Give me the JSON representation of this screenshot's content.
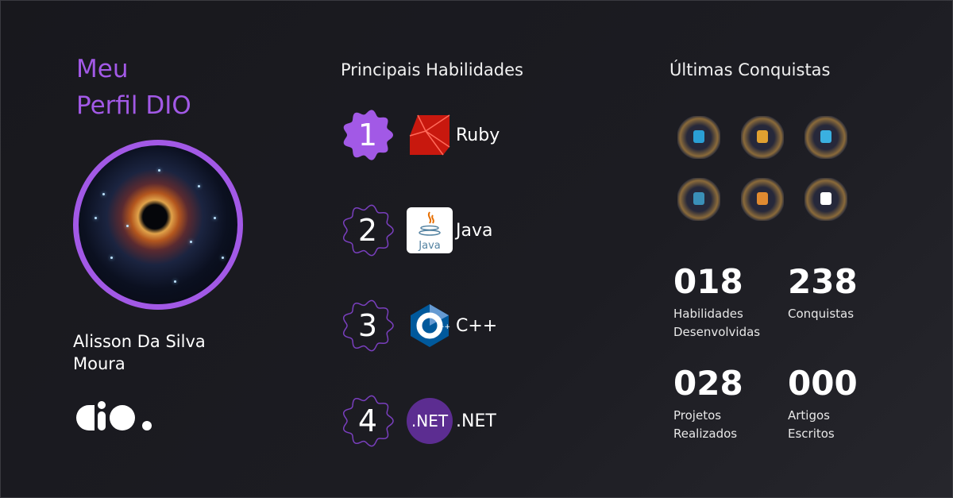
{
  "profile": {
    "title_line1": "Meu",
    "title_line2": "Perfil DIO",
    "name": "Alisson Da Silva Moura",
    "logo": "dio."
  },
  "skills": {
    "heading": "Principais Habilidades",
    "items": [
      {
        "rank": "1",
        "label": "Ruby",
        "icon": "ruby-icon",
        "highlight": true
      },
      {
        "rank": "2",
        "label": "Java",
        "icon": "java-icon",
        "highlight": false
      },
      {
        "rank": "3",
        "label": "C++",
        "icon": "cpp-icon",
        "highlight": false
      },
      {
        "rank": "4",
        "label": ".NET",
        "icon": "dotnet-icon",
        "logo_text": ".NET",
        "highlight": false
      }
    ]
  },
  "achievements": {
    "heading": "Últimas Conquistas",
    "badges": [
      "grid-badge",
      "bars-badge",
      "code-badge",
      "lock-badge",
      "database-badge",
      "lightning-badge"
    ]
  },
  "stats": [
    {
      "value": "018",
      "label1": "Habilidades",
      "label2": "Desenvolvidas"
    },
    {
      "value": "238",
      "label1": "Conquistas",
      "label2": ""
    },
    {
      "value": "028",
      "label1": "Projetos",
      "label2": "Realizados"
    },
    {
      "value": "000",
      "label1": "Artigos",
      "label2": "Escritos"
    }
  ],
  "colors": {
    "accent": "#a259e6",
    "background": "#1b1b20"
  }
}
